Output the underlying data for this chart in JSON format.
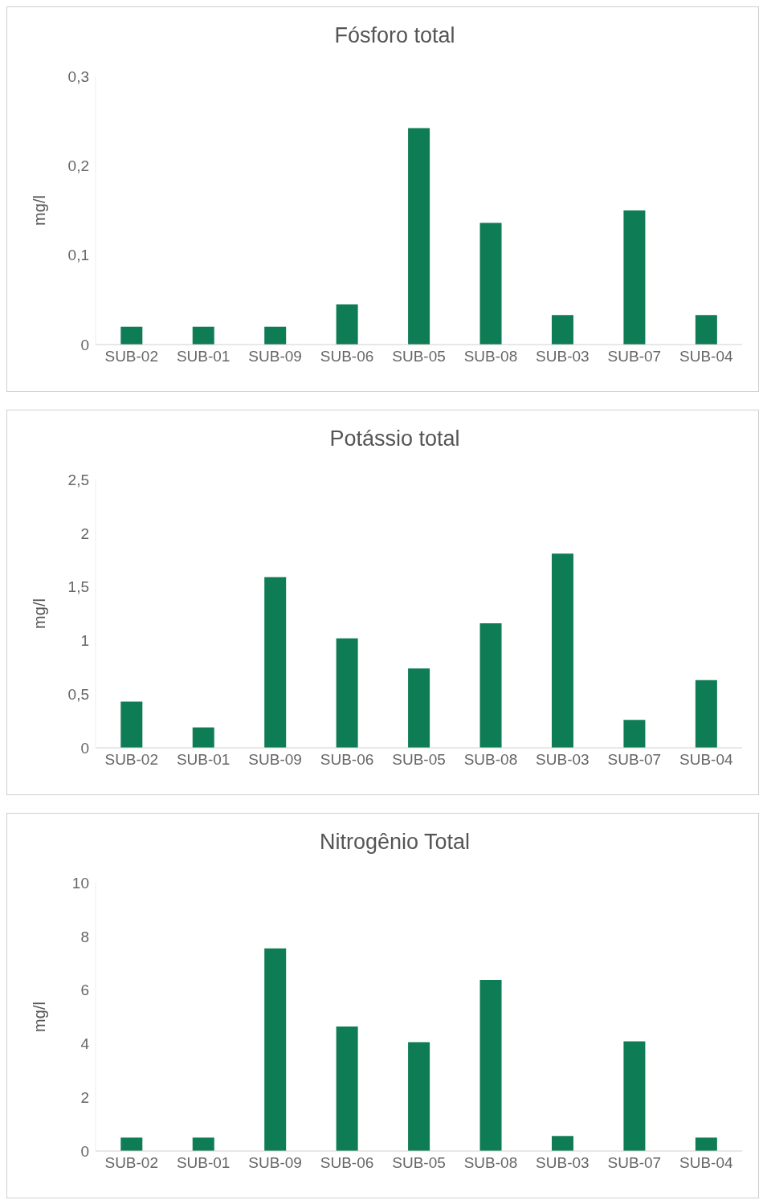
{
  "chart_data": [
    {
      "type": "bar",
      "title": "Fósforo total",
      "ylabel": "mg/l",
      "categories": [
        "SUB-02",
        "SUB-01",
        "SUB-09",
        "SUB-06",
        "SUB-05",
        "SUB-08",
        "SUB-03",
        "SUB-07",
        "SUB-04"
      ],
      "values": [
        0.02,
        0.02,
        0.02,
        0.045,
        0.242,
        0.136,
        0.033,
        0.15,
        0.033
      ],
      "color": "#0e7c55",
      "ylim": [
        0,
        0.3
      ],
      "yticks": [
        0,
        {
          "value": 0.1,
          "label": "0,1"
        },
        {
          "value": 0.2,
          "label": "0,2"
        },
        {
          "value": 0.3,
          "label": "0,3"
        }
      ],
      "grid": false,
      "legend": false
    },
    {
      "type": "bar",
      "title": "Potássio total",
      "ylabel": "mg/l",
      "categories": [
        "SUB-02",
        "SUB-01",
        "SUB-09",
        "SUB-06",
        "SUB-05",
        "SUB-08",
        "SUB-03",
        "SUB-07",
        "SUB-04"
      ],
      "values": [
        0.43,
        0.19,
        1.59,
        1.02,
        0.74,
        1.16,
        1.81,
        0.26,
        0.63
      ],
      "color": "#0e7c55",
      "ylim": [
        0,
        2.5
      ],
      "yticks": [
        0,
        {
          "value": 0.5,
          "label": "0,5"
        },
        1,
        {
          "value": 1.5,
          "label": "1,5"
        },
        2,
        {
          "value": 2.5,
          "label": "2,5"
        }
      ],
      "grid": false,
      "legend": false
    },
    {
      "type": "bar",
      "title": "Nitrogênio Total",
      "ylabel": "mg/l",
      "categories": [
        "SUB-02",
        "SUB-01",
        "SUB-09",
        "SUB-06",
        "SUB-05",
        "SUB-08",
        "SUB-03",
        "SUB-07",
        "SUB-04"
      ],
      "values": [
        0.5,
        0.5,
        7.55,
        4.64,
        4.06,
        6.38,
        0.56,
        4.09,
        0.5
      ],
      "color": "#0e7c55",
      "ylim": [
        0,
        10
      ],
      "yticks": [
        0,
        2,
        4,
        6,
        8,
        10
      ],
      "grid": false,
      "legend": false
    }
  ]
}
